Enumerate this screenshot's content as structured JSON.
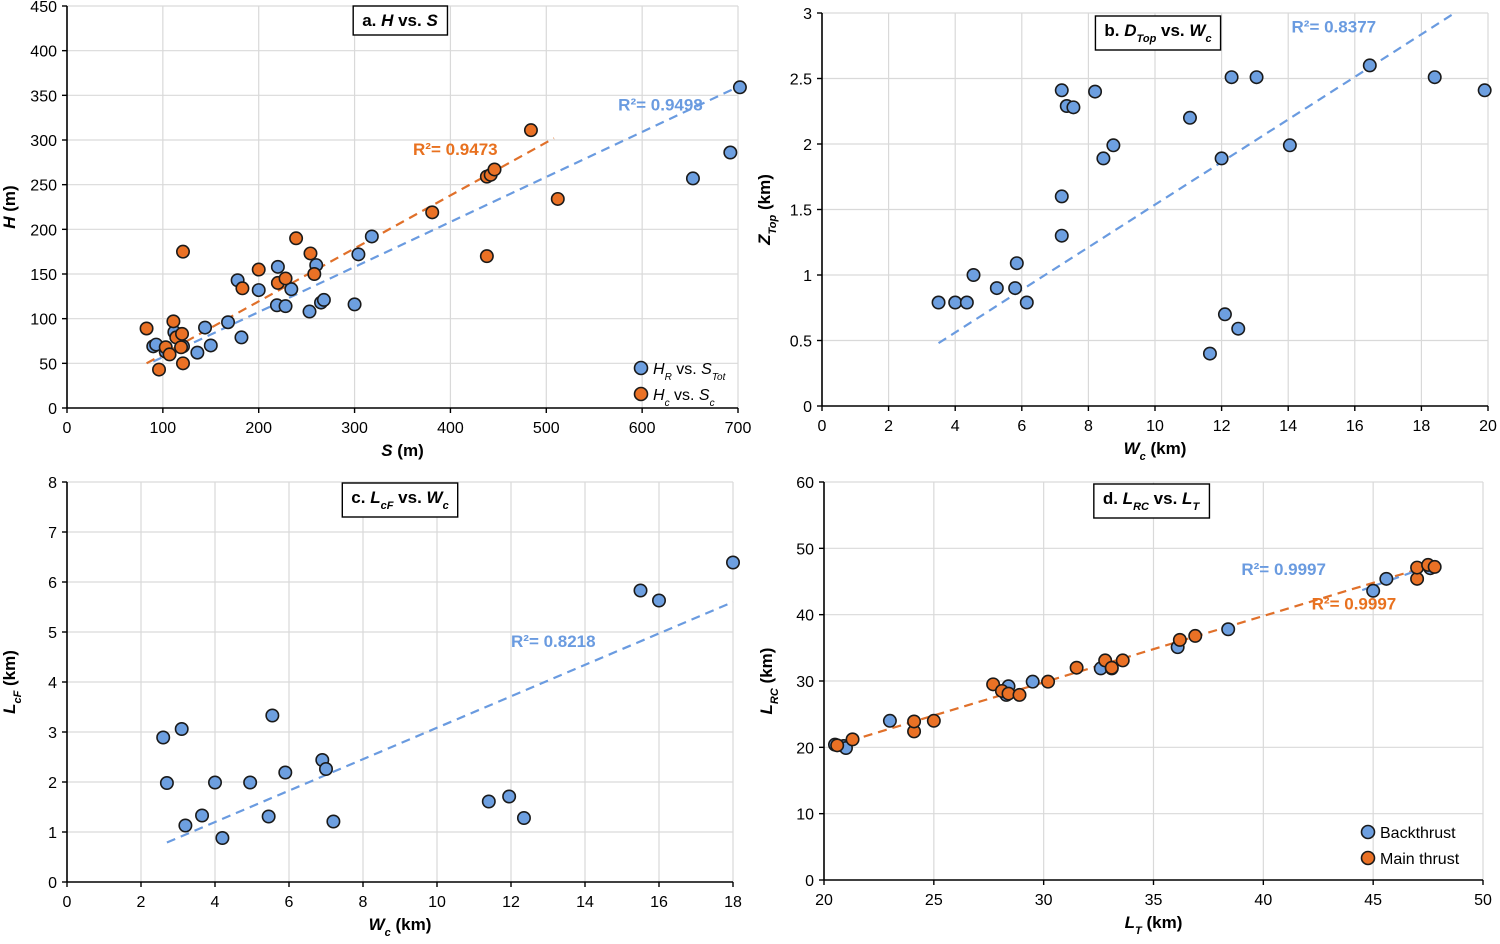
{
  "colors": {
    "backthrust": "#6d9fe0",
    "main_thrust": "#ea7125",
    "marker_edge": "#1a1a1a",
    "grid": "#d9d9d9",
    "trend_blue": "#6a9be0",
    "trend_orange": "#e0702a",
    "r2_blue": "#6a9be0",
    "r2_orange": "#e8711f"
  },
  "chart_data": [
    {
      "id": "a",
      "type": "scatter",
      "title": {
        "prefix": "a. ",
        "main": "H",
        "sub": "",
        "mid": " vs. ",
        "main2": "S",
        "sub2": ""
      },
      "xlabel": {
        "main": "S",
        "sub": "",
        "unit": " (m)"
      },
      "ylabel": {
        "main": "H",
        "sub": "",
        "unit": " (m)"
      },
      "xlim": [
        0,
        700
      ],
      "ylim": [
        0,
        450
      ],
      "xticks": [
        0,
        100,
        200,
        300,
        400,
        500,
        600,
        700
      ],
      "yticks": [
        0,
        50,
        100,
        150,
        200,
        250,
        300,
        350,
        400,
        450
      ],
      "grid": true,
      "legend_position": "bottom-right",
      "legend": [
        {
          "color_key": "backthrust",
          "main": "H",
          "sub": "R",
          "mid": " vs. ",
          "main2": "S",
          "sub2": "Tot"
        },
        {
          "color_key": "main_thrust",
          "main": "H",
          "sub": "c",
          "mid": " vs. ",
          "main2": "S",
          "sub2": "c"
        }
      ],
      "series": [
        {
          "color_key": "backthrust",
          "points": [
            [
              90,
              69
            ],
            [
              93,
              71
            ],
            [
              103,
              63
            ],
            [
              112,
              85
            ],
            [
              121,
              69
            ],
            [
              136,
              62
            ],
            [
              144,
              90
            ],
            [
              150,
              70
            ],
            [
              168,
              96
            ],
            [
              178,
              143
            ],
            [
              182,
              79
            ],
            [
              200,
              132
            ],
            [
              219,
              115
            ],
            [
              220,
              158
            ],
            [
              228,
              114
            ],
            [
              234,
              133
            ],
            [
              253,
              108
            ],
            [
              260,
              160
            ],
            [
              265,
              118
            ],
            [
              268,
              121
            ],
            [
              300,
              116
            ],
            [
              304,
              172
            ],
            [
              318,
              192
            ],
            [
              653,
              257
            ],
            [
              692,
              286
            ],
            [
              702,
              359
            ]
          ]
        },
        {
          "color_key": "main_thrust",
          "points": [
            [
              83,
              89
            ],
            [
              96,
              43
            ],
            [
              103,
              68
            ],
            [
              107,
              60
            ],
            [
              111,
              97
            ],
            [
              114,
              79
            ],
            [
              119,
              68
            ],
            [
              120,
              83
            ],
            [
              121,
              50
            ],
            [
              121,
              175
            ],
            [
              183,
              134
            ],
            [
              200,
              155
            ],
            [
              220,
              140
            ],
            [
              228,
              145
            ],
            [
              239,
              190
            ],
            [
              254,
              173
            ],
            [
              258,
              150
            ],
            [
              381,
              219
            ],
            [
              438,
              170
            ],
            [
              438,
              259
            ],
            [
              442,
              261
            ],
            [
              446,
              267
            ],
            [
              484,
              311
            ],
            [
              512,
              234
            ]
          ]
        }
      ],
      "trends": [
        {
          "color_key": "trend_blue",
          "from": [
            90,
            52
          ],
          "to": [
            705,
            362
          ]
        },
        {
          "color_key": "trend_orange",
          "from": [
            83,
            50
          ],
          "to": [
            508,
            302
          ]
        }
      ],
      "r2": [
        {
          "text": "R²= 0.9498",
          "color_key": "r2_blue",
          "at": [
            575,
            333
          ]
        },
        {
          "text": "R²= 0.9473",
          "color_key": "r2_orange",
          "at": [
            361,
            283
          ]
        }
      ]
    },
    {
      "id": "b",
      "type": "scatter",
      "title": {
        "prefix": "b. ",
        "main": "D",
        "sub": "Top",
        "mid": " vs. ",
        "main2": "W",
        "sub2": "c"
      },
      "xlabel": {
        "main": "W",
        "sub": "c",
        "unit": " (km)"
      },
      "ylabel": {
        "main": "Z",
        "sub": "Top",
        "unit": " (km)"
      },
      "xlim": [
        0,
        20
      ],
      "ylim": [
        0,
        3
      ],
      "xticks": [
        0,
        2,
        4,
        6,
        8,
        10,
        12,
        14,
        16,
        18,
        20
      ],
      "yticks": [
        0,
        0.5,
        1,
        1.5,
        2,
        2.5,
        3
      ],
      "grid": true,
      "legend_position": "none",
      "legend": [],
      "series": [
        {
          "color_key": "backthrust",
          "points": [
            [
              3.5,
              0.79
            ],
            [
              4.0,
              0.79
            ],
            [
              4.35,
              0.79
            ],
            [
              4.55,
              1.0
            ],
            [
              5.25,
              0.9
            ],
            [
              5.8,
              0.9
            ],
            [
              5.85,
              1.09
            ],
            [
              6.15,
              0.79
            ],
            [
              7.2,
              1.3
            ],
            [
              7.2,
              1.6
            ],
            [
              7.2,
              2.41
            ],
            [
              7.35,
              2.29
            ],
            [
              7.55,
              2.28
            ],
            [
              8.2,
              2.4
            ],
            [
              8.45,
              1.89
            ],
            [
              8.75,
              1.99
            ],
            [
              11.05,
              2.2
            ],
            [
              11.65,
              0.4
            ],
            [
              12.0,
              1.89
            ],
            [
              12.1,
              0.7
            ],
            [
              12.3,
              2.51
            ],
            [
              12.5,
              0.59
            ],
            [
              13.05,
              2.51
            ],
            [
              14.05,
              1.99
            ],
            [
              16.45,
              2.6
            ],
            [
              18.4,
              2.51
            ],
            [
              19.9,
              2.41
            ]
          ]
        }
      ],
      "trends": [
        {
          "color_key": "trend_blue",
          "from": [
            3.5,
            0.48
          ],
          "to": [
            19.0,
            3.0
          ]
        }
      ],
      "r2": [
        {
          "text": "R²= 0.8377",
          "color_key": "r2_blue",
          "at": [
            14.1,
            2.85
          ]
        }
      ]
    },
    {
      "id": "c",
      "type": "scatter",
      "title": {
        "prefix": "c. ",
        "main": "L",
        "sub": "cF",
        "mid": " vs. ",
        "main2": "W",
        "sub2": "c"
      },
      "xlabel": {
        "main": "W",
        "sub": "c",
        "unit": " (km)"
      },
      "ylabel": {
        "main": "L",
        "sub": "cF",
        "unit": " (km)"
      },
      "xlim": [
        0,
        18
      ],
      "ylim": [
        0,
        8
      ],
      "xticks": [
        0,
        2,
        4,
        6,
        8,
        10,
        12,
        14,
        16,
        18
      ],
      "yticks": [
        0,
        1,
        2,
        3,
        4,
        5,
        6,
        7,
        8
      ],
      "grid": true,
      "legend_position": "none",
      "legend": [],
      "series": [
        {
          "color_key": "backthrust",
          "points": [
            [
              2.6,
              2.89
            ],
            [
              2.7,
              1.98
            ],
            [
              3.1,
              3.06
            ],
            [
              3.2,
              1.13
            ],
            [
              3.65,
              1.33
            ],
            [
              4.0,
              1.99
            ],
            [
              4.2,
              0.88
            ],
            [
              4.95,
              1.99
            ],
            [
              5.45,
              1.31
            ],
            [
              5.55,
              3.33
            ],
            [
              5.9,
              2.19
            ],
            [
              6.9,
              2.44
            ],
            [
              7.0,
              2.26
            ],
            [
              7.2,
              1.21
            ],
            [
              11.4,
              1.61
            ],
            [
              11.95,
              1.71
            ],
            [
              12.35,
              1.28
            ],
            [
              15.5,
              5.83
            ],
            [
              16.0,
              5.63
            ],
            [
              18.0,
              6.39
            ]
          ]
        }
      ],
      "trends": [
        {
          "color_key": "trend_blue",
          "from": [
            2.7,
            0.79
          ],
          "to": [
            18.0,
            5.6
          ]
        }
      ],
      "r2": [
        {
          "text": "R²= 0.8218",
          "color_key": "r2_blue",
          "at": [
            12.0,
            4.7
          ]
        }
      ]
    },
    {
      "id": "d",
      "type": "scatter",
      "title": {
        "prefix": "d. ",
        "main": "L",
        "sub": "RC",
        "mid": " vs. ",
        "main2": "L",
        "sub2": "T"
      },
      "xlabel": {
        "main": "L",
        "sub": "T",
        "unit": "  (km)"
      },
      "ylabel": {
        "main": "L",
        "sub": "RC",
        "unit": " (km)"
      },
      "xlim": [
        20,
        50
      ],
      "ylim": [
        0,
        60
      ],
      "xticks": [
        20,
        25,
        30,
        35,
        40,
        45,
        50
      ],
      "yticks": [
        0,
        10,
        20,
        30,
        40,
        50,
        60
      ],
      "grid": true,
      "legend_position": "bottom-right",
      "legend": [
        {
          "color_key": "backthrust",
          "main": "Backthrust",
          "sub": "",
          "mid": "",
          "main2": "",
          "sub2": ""
        },
        {
          "color_key": "main_thrust",
          "main": "Main thrust",
          "sub": "",
          "mid": "",
          "main2": "",
          "sub2": ""
        }
      ],
      "series": [
        {
          "color_key": "backthrust",
          "points": [
            [
              20.5,
              20.4
            ],
            [
              20.9,
              20.2
            ],
            [
              21.0,
              19.9
            ],
            [
              23.0,
              24.0
            ],
            [
              28.3,
              27.9
            ],
            [
              28.3,
              28.6
            ],
            [
              28.4,
              29.2
            ],
            [
              29.5,
              29.9
            ],
            [
              32.6,
              31.9
            ],
            [
              33.1,
              31.9
            ],
            [
              36.1,
              35.1
            ],
            [
              38.4,
              37.8
            ],
            [
              45.0,
              43.6
            ],
            [
              45.6,
              45.4
            ],
            [
              47.6,
              47.0
            ]
          ]
        },
        {
          "color_key": "main_thrust",
          "points": [
            [
              20.6,
              20.3
            ],
            [
              21.3,
              21.2
            ],
            [
              24.1,
              22.4
            ],
            [
              24.1,
              23.9
            ],
            [
              25.0,
              24.0
            ],
            [
              27.7,
              29.5
            ],
            [
              28.1,
              28.5
            ],
            [
              28.4,
              28.1
            ],
            [
              28.9,
              27.9
            ],
            [
              30.2,
              29.9
            ],
            [
              31.5,
              32.0
            ],
            [
              32.8,
              33.1
            ],
            [
              33.1,
              32.0
            ],
            [
              33.6,
              33.1
            ],
            [
              36.2,
              36.2
            ],
            [
              36.9,
              36.8
            ],
            [
              47.0,
              45.4
            ],
            [
              47.0,
              47.1
            ],
            [
              47.5,
              47.5
            ],
            [
              47.8,
              47.2
            ]
          ]
        }
      ],
      "trends": [
        {
          "color_key": "trend_orange",
          "from": [
            20.5,
            20.3
          ],
          "to": [
            47.8,
            47.6
          ]
        },
        {
          "color_key": "trend_blue",
          "from": [
            44.5,
            43.7
          ],
          "to": [
            47.8,
            47.6
          ]
        }
      ],
      "r2": [
        {
          "text": "R²= 0.9997",
          "color_key": "r2_blue",
          "at": [
            39.0,
            46.0
          ]
        },
        {
          "text": "R²= 0.9997",
          "color_key": "r2_orange",
          "at": [
            42.2,
            40.8
          ]
        }
      ]
    }
  ]
}
